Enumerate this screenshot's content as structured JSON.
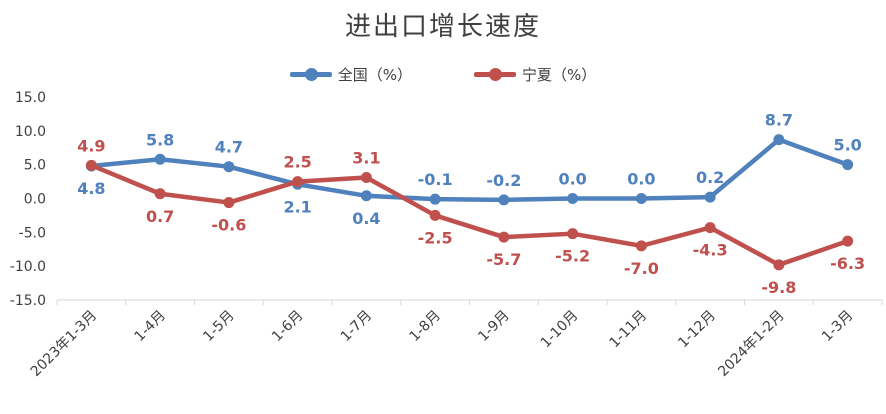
{
  "chart_data": {
    "type": "line",
    "title": "进出口增长速度",
    "xlabel": "",
    "ylabel": "",
    "ylim": [
      -15,
      15
    ],
    "yticks": [
      "15.0",
      "10.0",
      "5.0",
      "0.0",
      "-5.0",
      "-10.0",
      "-15.0"
    ],
    "grid": false,
    "legend_position": "top-center",
    "categories": [
      "2023年1-3月",
      "1-4月",
      "1-5月",
      "1-6月",
      "1-7月",
      "1-8月",
      "1-9月",
      "1-10月",
      "1-11月",
      "1-12月",
      "2024年1-2月",
      "1-3月"
    ],
    "series": [
      {
        "name": "全国（%）",
        "color": "#4f81bd",
        "values": [
          4.8,
          5.8,
          4.7,
          2.1,
          0.4,
          -0.1,
          -0.2,
          0.0,
          0.0,
          0.2,
          8.7,
          5.0
        ],
        "labels": [
          "4.8",
          "5.8",
          "4.7",
          "2.1",
          "0.4",
          "-0.1",
          "-0.2",
          "0.0",
          "0.0",
          "0.2",
          "8.7",
          "5.0"
        ]
      },
      {
        "name": "宁夏（%）",
        "color": "#c0504d",
        "values": [
          4.9,
          0.7,
          -0.6,
          2.5,
          3.1,
          -2.5,
          -5.7,
          -5.2,
          -7.0,
          -4.3,
          -9.8,
          -6.3
        ],
        "labels": [
          "4.9",
          "0.7",
          "-0.6",
          "2.5",
          "3.1",
          "-2.5",
          "-5.7",
          "-5.2",
          "-7.0",
          "-4.3",
          "-9.8",
          "-6.3"
        ]
      }
    ]
  }
}
